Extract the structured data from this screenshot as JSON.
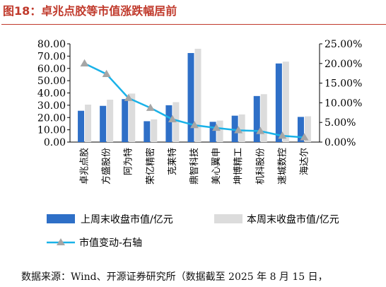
{
  "figure": {
    "title": "图18：卓兆点胶等市值涨跌幅居前",
    "source": "数据来源：Wind、开源证券研究所（数据截至 2025 年 8 月 15 日，"
  },
  "chart_data": {
    "type": "bar",
    "categories": [
      "卓兆点胶",
      "方盛股份",
      "阿为特",
      "荣亿精密",
      "克莱特",
      "鼎智科技",
      "美心翼申",
      "坤博精工",
      "机科股份",
      "速城数控",
      "海达尔"
    ],
    "series": [
      {
        "name": "上周末收盘市值/亿元",
        "kind": "bar",
        "axis": "left",
        "color": "#2e6fc7",
        "values": [
          25.5,
          29.5,
          35.0,
          17.0,
          30.0,
          72.5,
          16.5,
          21.5,
          37.5,
          64.0,
          20.5
        ]
      },
      {
        "name": "本周末收盘市值/亿元",
        "kind": "bar",
        "axis": "left",
        "color": "#dcdcdc",
        "values": [
          30.5,
          34.5,
          39.5,
          18.5,
          32.5,
          76.0,
          17.5,
          22.5,
          39.0,
          65.5,
          21.0
        ]
      },
      {
        "name": "市值变动-右轴",
        "kind": "line",
        "axis": "right",
        "color": "#1ab2e8",
        "marker_color": "#a6a6a6",
        "values": [
          20.0,
          17.3,
          11.2,
          8.7,
          5.8,
          4.3,
          3.6,
          3.0,
          2.8,
          1.6,
          1.2
        ]
      }
    ],
    "y_left": {
      "ticks": [
        "0.00",
        "10.00",
        "20.00",
        "30.00",
        "40.00",
        "50.00",
        "60.00",
        "70.00",
        "80.00"
      ],
      "range": [
        0,
        80
      ]
    },
    "y_right": {
      "ticks": [
        "0.00%",
        "5.00%",
        "10.00%",
        "15.00%",
        "20.00%",
        "25.00%"
      ],
      "range": [
        0,
        25
      ]
    },
    "grid": false,
    "legend_position": "bottom"
  }
}
